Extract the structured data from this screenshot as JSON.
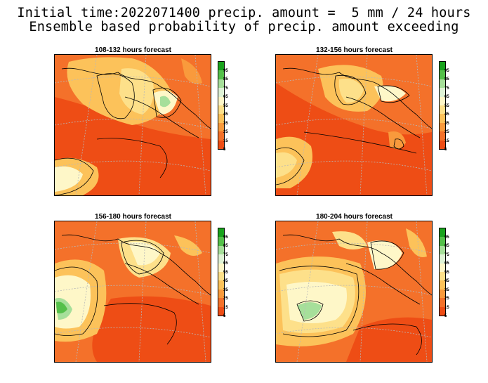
{
  "title_line1": "Initial time:2022071400 precip. amount =  5 mm / 24 hours",
  "title_line2": "Ensemble based probability of precip. amount exceeding",
  "panels": [
    {
      "title": "108-132 hours forecast"
    },
    {
      "title": "132-156 hours forecast"
    },
    {
      "title": "156-180 hours forecast"
    },
    {
      "title": "180-204 hours forecast"
    }
  ],
  "colorbar": {
    "labels": [
      "95",
      "85",
      "75",
      "65",
      "55",
      "45",
      "35",
      "25",
      "15",
      "5"
    ],
    "colors": [
      "#18a21c",
      "#54c04a",
      "#a6df9a",
      "#dff3d6",
      "#fef7c8",
      "#fde08a",
      "#fcc25a",
      "#f99a3c",
      "#f4712a",
      "#ee4d15"
    ]
  },
  "colors": {
    "land_low": "#ee4d15",
    "contour": "#000000",
    "graticule": "#b8b8b8"
  }
}
